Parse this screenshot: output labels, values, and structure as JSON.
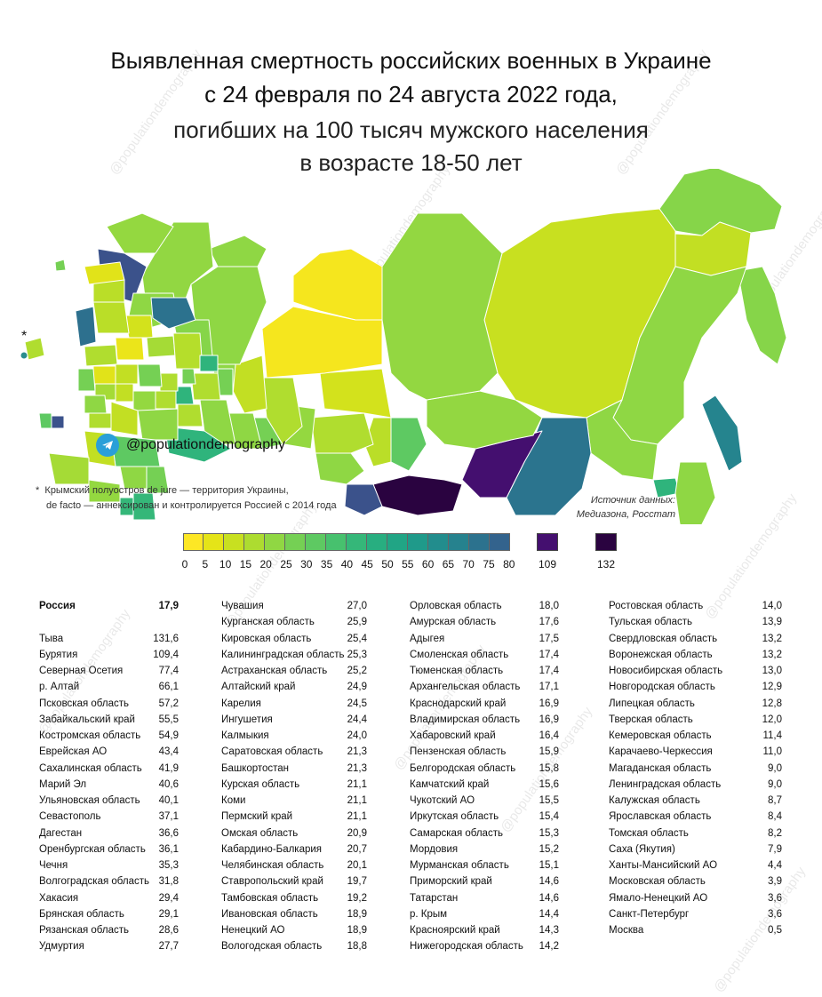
{
  "title": {
    "line1": "Выявленная смертность российских военных в Украине",
    "line2": "с 24 февраля по 24 августа 2022 года,",
    "line3": "погибших на 100 тысяч мужского населения",
    "line4": "в возрасте 18-50 лет"
  },
  "watermark": "@populationdemography",
  "telegram_handle": "@populationdemography",
  "crimea_marker": "*",
  "note": {
    "line1": "Крымский полуостров de jure — территория Украины,",
    "line2": "de facto — аннексирован и контролируется Россией с 2014 года"
  },
  "source": {
    "line1": "Источник данных:",
    "line2": "Медиазона, Росстат"
  },
  "legend": {
    "steps": [
      {
        "label": "0",
        "color": "#fde725"
      },
      {
        "label": "5",
        "color": "#e5e418"
      },
      {
        "label": "10",
        "color": "#c8e020"
      },
      {
        "label": "15",
        "color": "#addc30"
      },
      {
        "label": "20",
        "color": "#90d743"
      },
      {
        "label": "25",
        "color": "#75d054"
      },
      {
        "label": "30",
        "color": "#5ec962"
      },
      {
        "label": "35",
        "color": "#47c16e"
      },
      {
        "label": "40",
        "color": "#35b779"
      },
      {
        "label": "45",
        "color": "#28ae80"
      },
      {
        "label": "50",
        "color": "#21a585"
      },
      {
        "label": "55",
        "color": "#1f9a8a"
      },
      {
        "label": "60",
        "color": "#228d8d"
      },
      {
        "label": "65",
        "color": "#26828e"
      },
      {
        "label": "70",
        "color": "#2c728e"
      },
      {
        "label": "75",
        "color": "#33638d"
      },
      {
        "label": "80",
        "color": "#3b528b"
      }
    ],
    "end_label": "80",
    "extra": [
      {
        "label": "109",
        "color": "#440f6f"
      },
      {
        "label": "132",
        "color": "#2a0340"
      }
    ]
  },
  "table": {
    "columns": [
      [
        {
          "name": "Россия",
          "value": "17,9",
          "bold": true
        },
        {
          "name": "",
          "value": ""
        },
        {
          "name": "Тыва",
          "value": "131,6"
        },
        {
          "name": "Бурятия",
          "value": "109,4"
        },
        {
          "name": "Северная Осетия",
          "value": "77,4"
        },
        {
          "name": "р. Алтай",
          "value": "66,1"
        },
        {
          "name": "Псковская область",
          "value": "57,2"
        },
        {
          "name": "Забайкальский край",
          "value": "55,5"
        },
        {
          "name": "Костромская область",
          "value": "54,9"
        },
        {
          "name": "Еврейская АО",
          "value": "43,4"
        },
        {
          "name": "Сахалинская область",
          "value": "41,9"
        },
        {
          "name": "Марий Эл",
          "value": "40,6"
        },
        {
          "name": "Ульяновская область",
          "value": "40,1"
        },
        {
          "name": "Севастополь",
          "value": "37,1"
        },
        {
          "name": "Дагестан",
          "value": "36,6"
        },
        {
          "name": "Оренбургская область",
          "value": "36,1"
        },
        {
          "name": "Чечня",
          "value": "35,3"
        },
        {
          "name": "Волгоградская область",
          "value": "31,8"
        },
        {
          "name": "Хакасия",
          "value": "29,4"
        },
        {
          "name": "Брянская область",
          "value": "29,1"
        },
        {
          "name": "Рязанская область",
          "value": "28,6"
        },
        {
          "name": "Удмуртия",
          "value": "27,7"
        }
      ],
      [
        {
          "name": "Чувашия",
          "value": "27,0"
        },
        {
          "name": "Курганская область",
          "value": "25,9"
        },
        {
          "name": "Кировская область",
          "value": "25,4"
        },
        {
          "name": "Калининградская область",
          "value": "25,3"
        },
        {
          "name": "Астраханская область",
          "value": "25,2"
        },
        {
          "name": "Алтайский край",
          "value": "24,9"
        },
        {
          "name": "Карелия",
          "value": "24,5"
        },
        {
          "name": "Ингушетия",
          "value": "24,4"
        },
        {
          "name": "Калмыкия",
          "value": "24,0"
        },
        {
          "name": "Саратовская область",
          "value": "21,3"
        },
        {
          "name": "Башкортостан",
          "value": "21,3"
        },
        {
          "name": "Курская область",
          "value": "21,1"
        },
        {
          "name": "Коми",
          "value": "21,1"
        },
        {
          "name": "Пермский край",
          "value": "21,1"
        },
        {
          "name": "Омская область",
          "value": "20,9"
        },
        {
          "name": "Кабардино-Балкария",
          "value": "20,7"
        },
        {
          "name": "Челябинская область",
          "value": "20,1"
        },
        {
          "name": "Ставропольский край",
          "value": "19,7"
        },
        {
          "name": "Тамбовская область",
          "value": "19,2"
        },
        {
          "name": "Ивановская область",
          "value": "18,9"
        },
        {
          "name": "Ненецкий АО",
          "value": "18,9"
        },
        {
          "name": "Вологодская область",
          "value": "18,8"
        }
      ],
      [
        {
          "name": "Орловская область",
          "value": "18,0"
        },
        {
          "name": "Амурская область",
          "value": "17,6"
        },
        {
          "name": "Адыгея",
          "value": "17,5"
        },
        {
          "name": "Смоленская область",
          "value": "17,4"
        },
        {
          "name": "Тюменская область",
          "value": "17,4"
        },
        {
          "name": "Архангельская область",
          "value": "17,1"
        },
        {
          "name": "Краснодарский край",
          "value": "16,9"
        },
        {
          "name": "Владимирская область",
          "value": "16,9"
        },
        {
          "name": "Хабаровский край",
          "value": "16,4"
        },
        {
          "name": "Пензенская область",
          "value": "15,9"
        },
        {
          "name": "Белгородская область",
          "value": "15,8"
        },
        {
          "name": "Камчатский край",
          "value": "15,6"
        },
        {
          "name": "Чукотский АО",
          "value": "15,5"
        },
        {
          "name": "Иркутская область",
          "value": "15,4"
        },
        {
          "name": "Самарская область",
          "value": "15,3"
        },
        {
          "name": "Мордовия",
          "value": "15,2"
        },
        {
          "name": "Мурманская область",
          "value": "15,1"
        },
        {
          "name": "Приморский край",
          "value": "14,6"
        },
        {
          "name": "Татарстан",
          "value": "14,6"
        },
        {
          "name": "р. Крым",
          "value": "14,4"
        },
        {
          "name": "Красноярский край",
          "value": "14,3"
        },
        {
          "name": "Нижегородская область",
          "value": "14,2"
        }
      ],
      [
        {
          "name": "Ростовская область",
          "value": "14,0"
        },
        {
          "name": "Тульская область",
          "value": "13,9"
        },
        {
          "name": "Свердловская область",
          "value": "13,2"
        },
        {
          "name": "Воронежская область",
          "value": "13,2"
        },
        {
          "name": "Новосибирская область",
          "value": "13,0"
        },
        {
          "name": "Новгородская область",
          "value": "12,9"
        },
        {
          "name": "Липецкая область",
          "value": "12,8"
        },
        {
          "name": "Тверская область",
          "value": "12,0"
        },
        {
          "name": "Кемеровская область",
          "value": "11,4"
        },
        {
          "name": "Карачаево-Черкессия",
          "value": "11,0"
        },
        {
          "name": "Магаданская область",
          "value": "9,0"
        },
        {
          "name": "Ленинградская область",
          "value": "9,0"
        },
        {
          "name": "Калужская область",
          "value": "8,7"
        },
        {
          "name": "Ярославская область",
          "value": "8,4"
        },
        {
          "name": "Томская область",
          "value": "8,2"
        },
        {
          "name": "Саха (Якутия)",
          "value": "7,9"
        },
        {
          "name": "Ханты-Мансийский АО",
          "value": "4,4"
        },
        {
          "name": "Московская область",
          "value": "3,9"
        },
        {
          "name": "Ямало-Ненецкий АО",
          "value": "3,6"
        },
        {
          "name": "Санкт-Петербург",
          "value": "3,6"
        },
        {
          "name": "Москва",
          "value": "0,5"
        }
      ]
    ]
  }
}
